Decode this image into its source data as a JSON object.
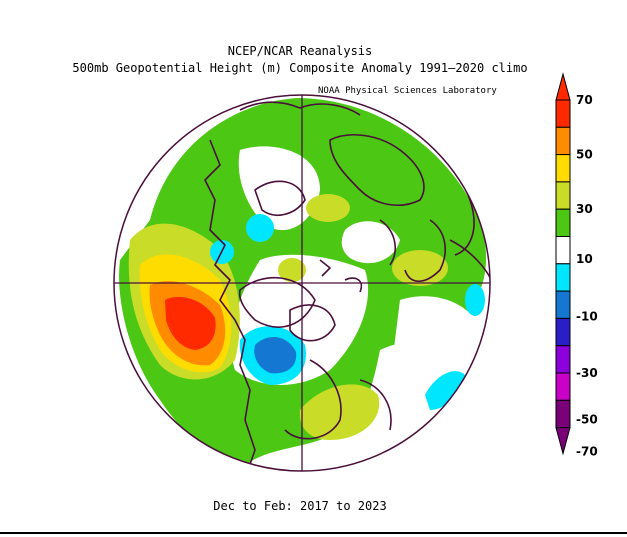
{
  "title": "NCEP/NCAR Reanalysis",
  "subtitle": "500mb Geopotential Height (m) Composite Anomaly 1991–2020 climo",
  "credit": "NOAA Physical Sciences Laboratory",
  "period": "Dec to Feb: 2017 to 2023",
  "colorbar": {
    "labels": [
      "70",
      "50",
      "30",
      "10",
      "-10",
      "-30",
      "-50",
      "-70"
    ],
    "colors": [
      "#ff2a00",
      "#ff8c00",
      "#ffdc00",
      "#c8dc28",
      "#4cc814",
      "#ffffff",
      "#00e6ff",
      "#1478d2",
      "#2a1ec8",
      "#8c00dc",
      "#c800c8",
      "#7a0078"
    ]
  },
  "map": {
    "projection": "north-polar-stereographic",
    "field_colors": {
      "pos10_30": "#4cc814",
      "pos30_50": "#c8dc28",
      "pos50_70": "#ffdc00",
      "pos70_90": "#ff8c00",
      "pos90": "#ff2a00",
      "neg10_30": "#00e6ff",
      "neg30_50": "#1478d2"
    },
    "coast_color": "#4a0f3a"
  }
}
